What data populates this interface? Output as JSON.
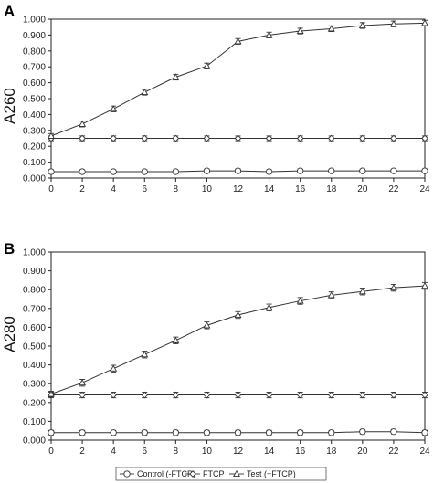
{
  "chart_data": [
    {
      "type": "line",
      "panel_label": "A",
      "ylabel": "A260",
      "xlabel": "",
      "xlim": [
        0,
        24
      ],
      "ylim": [
        0,
        1.0
      ],
      "x_ticks": [
        "0",
        "2",
        "4",
        "6",
        "8",
        "10",
        "12",
        "14",
        "16",
        "18",
        "20",
        "22",
        "24"
      ],
      "y_ticks": [
        "0.000",
        "0.100",
        "0.200",
        "0.300",
        "0.400",
        "0.500",
        "0.600",
        "0.700",
        "0.800",
        "0.900",
        "1.000"
      ],
      "grid": false,
      "x": [
        0,
        2,
        4,
        6,
        8,
        10,
        12,
        14,
        16,
        18,
        20,
        22,
        24
      ],
      "series": [
        {
          "name": "Control (-FTCP)",
          "marker": "circle",
          "values": [
            0.04,
            0.04,
            0.04,
            0.04,
            0.04,
            0.045,
            0.045,
            0.04,
            0.045,
            0.045,
            0.045,
            0.045,
            0.045
          ],
          "error": [
            0.012,
            0.012,
            0.012,
            0.012,
            0.012,
            0.012,
            0.012,
            0.012,
            0.012,
            0.012,
            0.012,
            0.012,
            0.012
          ]
        },
        {
          "name": "FTCP",
          "marker": "diamond",
          "values": [
            0.25,
            0.25,
            0.25,
            0.25,
            0.25,
            0.25,
            0.25,
            0.25,
            0.25,
            0.25,
            0.25,
            0.25,
            0.25
          ],
          "error": [
            0.015,
            0.015,
            0.015,
            0.015,
            0.015,
            0.015,
            0.015,
            0.015,
            0.015,
            0.015,
            0.015,
            0.015,
            0.015
          ]
        },
        {
          "name": "Test (+FTCP)",
          "marker": "triangle",
          "values": [
            0.265,
            0.34,
            0.435,
            0.54,
            0.635,
            0.705,
            0.86,
            0.9,
            0.925,
            0.94,
            0.96,
            0.97,
            0.975
          ],
          "error": [
            0.015,
            0.018,
            0.018,
            0.018,
            0.018,
            0.018,
            0.018,
            0.018,
            0.018,
            0.018,
            0.018,
            0.018,
            0.018
          ]
        }
      ]
    },
    {
      "type": "line",
      "panel_label": "B",
      "ylabel": "A280",
      "xlabel": "",
      "xlim": [
        0,
        24
      ],
      "ylim": [
        0,
        1.0
      ],
      "x_ticks": [
        "0",
        "2",
        "4",
        "6",
        "8",
        "10",
        "12",
        "14",
        "16",
        "18",
        "20",
        "22",
        "24"
      ],
      "y_ticks": [
        "0.000",
        "0.100",
        "0.200",
        "0.300",
        "0.400",
        "0.500",
        "0.600",
        "0.700",
        "0.800",
        "0.900",
        "1.000"
      ],
      "grid": false,
      "x": [
        0,
        2,
        4,
        6,
        8,
        10,
        12,
        14,
        16,
        18,
        20,
        22,
        24
      ],
      "series": [
        {
          "name": "Control (-FTCP)",
          "marker": "circle",
          "values": [
            0.04,
            0.04,
            0.04,
            0.04,
            0.04,
            0.04,
            0.04,
            0.04,
            0.04,
            0.04,
            0.045,
            0.045,
            0.04
          ],
          "error": [
            0.012,
            0.012,
            0.012,
            0.012,
            0.012,
            0.012,
            0.012,
            0.012,
            0.012,
            0.012,
            0.012,
            0.012,
            0.012
          ]
        },
        {
          "name": "FTCP",
          "marker": "diamond",
          "values": [
            0.24,
            0.24,
            0.24,
            0.24,
            0.24,
            0.24,
            0.24,
            0.24,
            0.24,
            0.24,
            0.24,
            0.24,
            0.24
          ],
          "error": [
            0.015,
            0.015,
            0.015,
            0.015,
            0.015,
            0.015,
            0.015,
            0.015,
            0.015,
            0.015,
            0.015,
            0.015,
            0.015
          ]
        },
        {
          "name": "Test (+FTCP)",
          "marker": "triangle",
          "values": [
            0.245,
            0.305,
            0.38,
            0.455,
            0.53,
            0.61,
            0.665,
            0.705,
            0.74,
            0.77,
            0.79,
            0.81,
            0.82
          ],
          "error": [
            0.015,
            0.018,
            0.018,
            0.018,
            0.018,
            0.018,
            0.018,
            0.018,
            0.018,
            0.018,
            0.018,
            0.018,
            0.018
          ]
        }
      ]
    }
  ],
  "legend": {
    "placement": "bottom-center",
    "items": [
      {
        "label": "Control (-FTCP)",
        "marker": "circle"
      },
      {
        "label": "FTCP",
        "marker": "diamond"
      },
      {
        "label": "Test (+FTCP)",
        "marker": "triangle"
      }
    ]
  }
}
